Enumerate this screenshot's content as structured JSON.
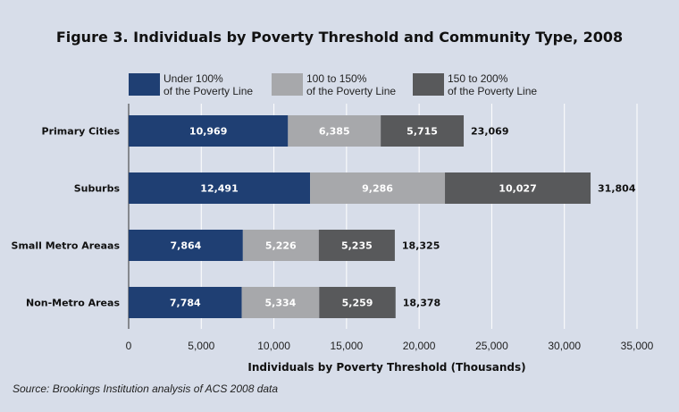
{
  "chart_data": {
    "type": "bar",
    "orientation": "horizontal",
    "stacked": true,
    "title": "Figure 3. Individuals by Poverty Threshold and Community Type, 2008",
    "xlabel": "Individuals by Poverty Threshold (Thousands)",
    "ylabel": "",
    "xlim": [
      0,
      35000
    ],
    "xticks": [
      0,
      5000,
      10000,
      15000,
      20000,
      25000,
      30000,
      35000
    ],
    "xtick_labels": [
      "0",
      "5,000",
      "10,000",
      "15,000",
      "20,000",
      "25,000",
      "30,000",
      "35,000"
    ],
    "grid": "vertical",
    "legend_position": "top",
    "categories": [
      "Primary Cities",
      "Suburbs",
      "Small Metro Areaas",
      "Non-Metro Areas"
    ],
    "series": [
      {
        "name": "Under 100% of the Poverty Line",
        "name_lines": [
          "Under 100%",
          "of the Poverty Line"
        ],
        "color": "#1f3f73",
        "values": [
          10969,
          12491,
          7864,
          7784
        ],
        "labels": [
          "10,969",
          "12,491",
          "7,864",
          "7,784"
        ]
      },
      {
        "name": "100 to 150% of the Poverty Line",
        "name_lines": [
          "100 to 150%",
          "of the Poverty Line"
        ],
        "color": "#a7a8ab",
        "values": [
          6385,
          9286,
          5226,
          5334
        ],
        "labels": [
          "6,385",
          "9,286",
          "5,226",
          "5,334"
        ]
      },
      {
        "name": "150 to 200% of the Poverty Line",
        "name_lines": [
          "150 to 200%",
          "of the Poverty Line"
        ],
        "color": "#58595b",
        "values": [
          5715,
          10027,
          5235,
          5259
        ],
        "labels": [
          "5,715",
          "10,027",
          "5,235",
          "5,259"
        ]
      }
    ],
    "totals": [
      23069,
      31804,
      18325,
      18378
    ],
    "total_labels": [
      "23,069",
      "31,804",
      "18,325",
      "18,378"
    ]
  },
  "source": "Source: Brookings Institution analysis of ACS 2008 data"
}
